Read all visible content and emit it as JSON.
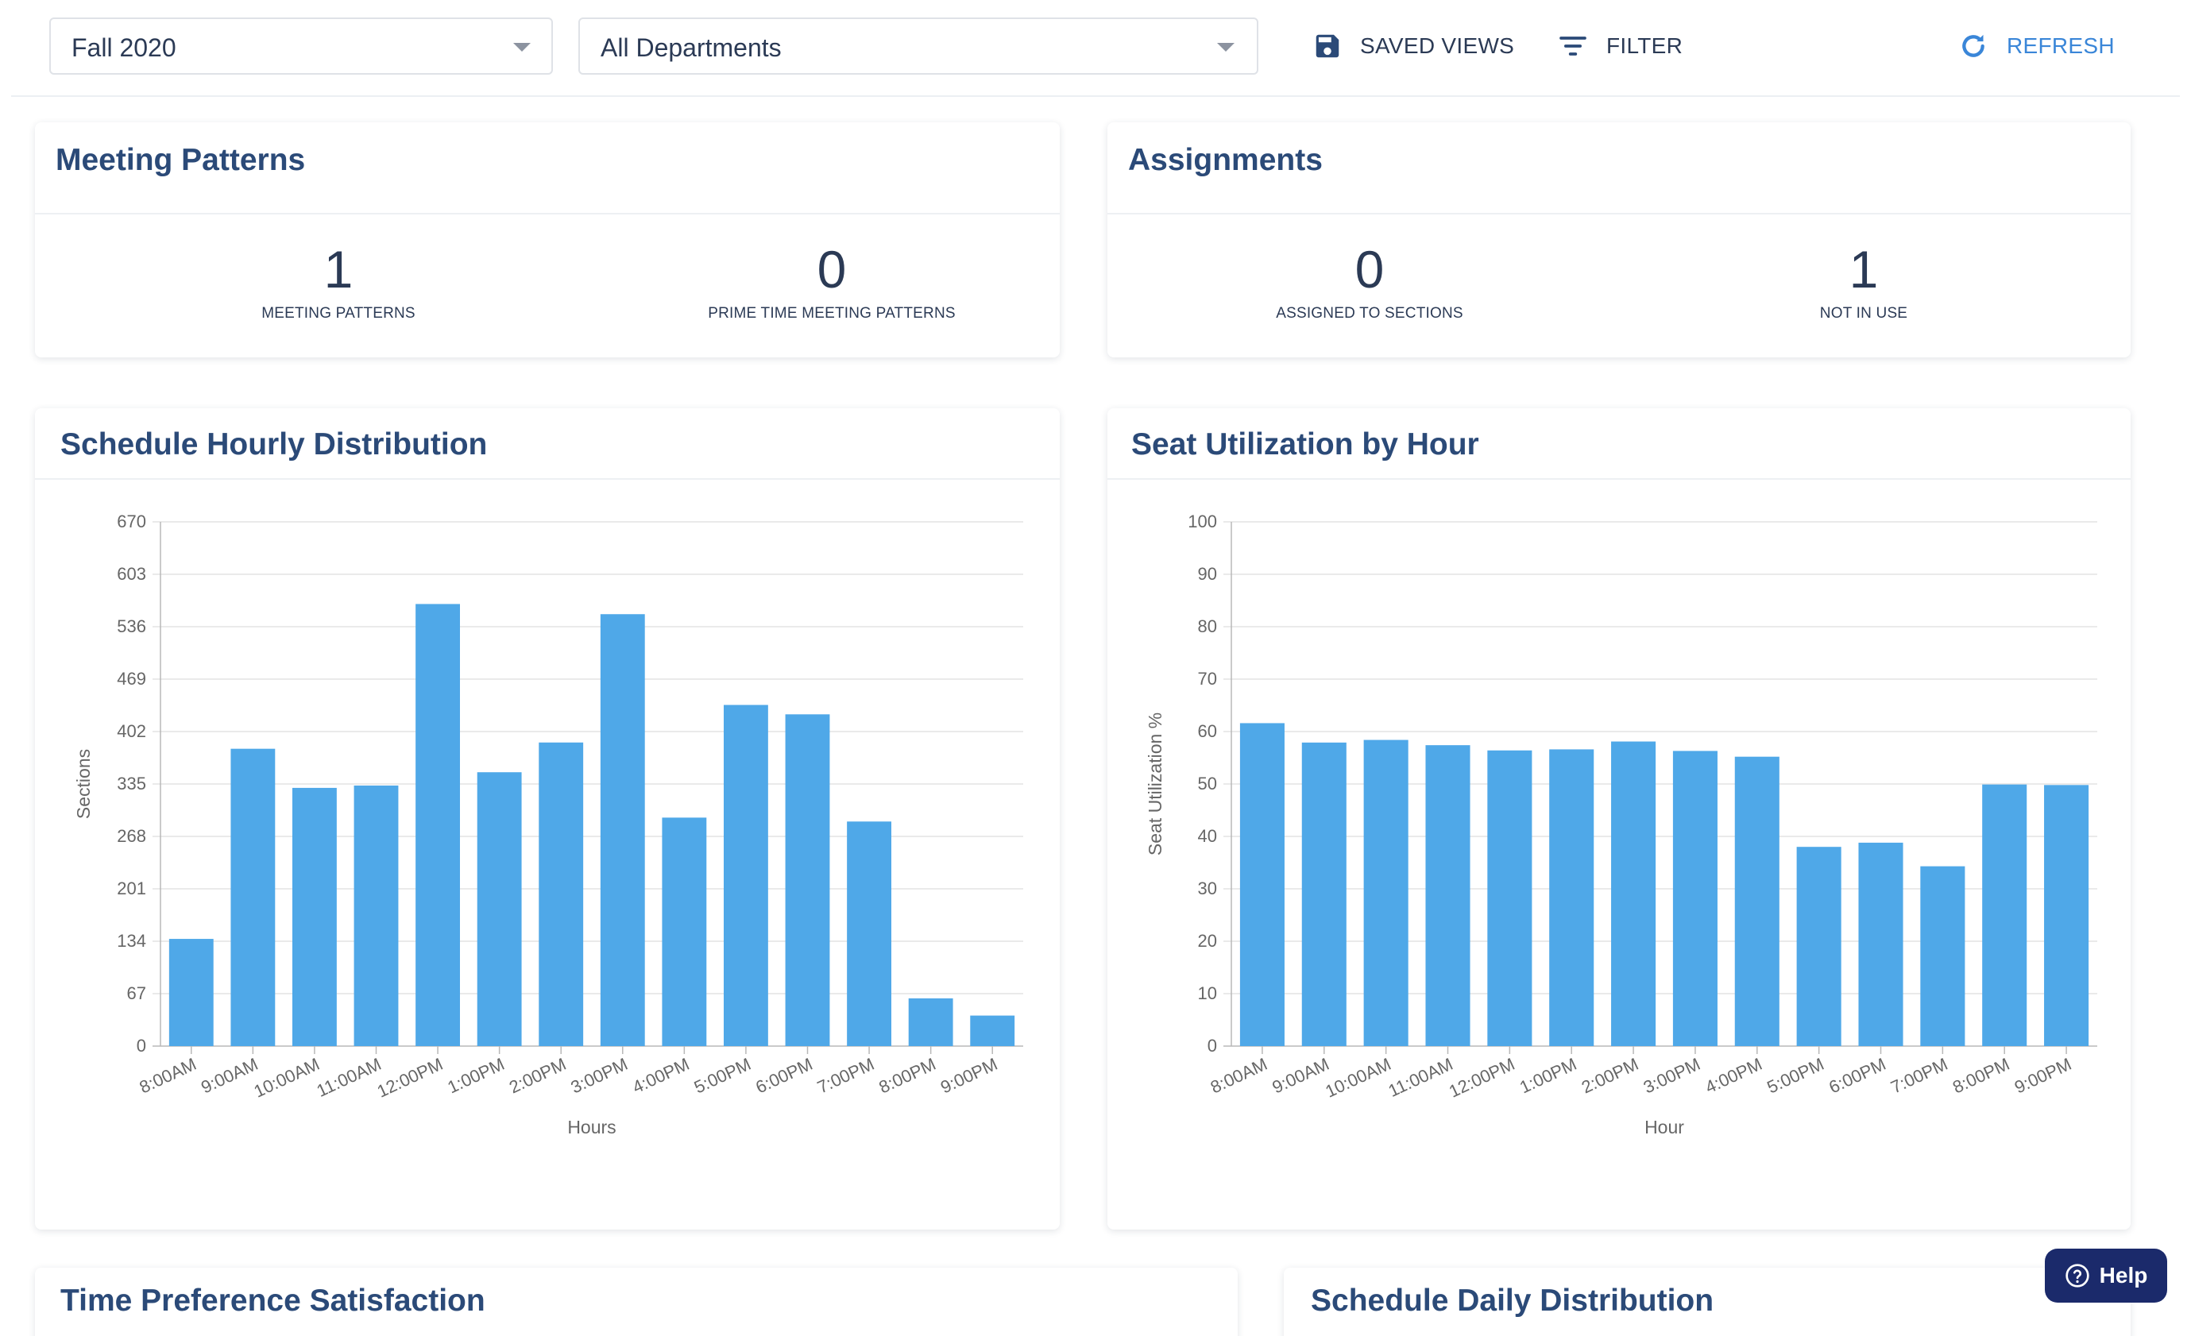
{
  "toolbar": {
    "term_select": {
      "value": "Fall 2020"
    },
    "department_select": {
      "value": "All Departments"
    },
    "saved_views_label": "SAVED VIEWS",
    "filter_label": "FILTER",
    "refresh_label": "REFRESH",
    "icons": {
      "saved_views": "save-icon",
      "filter": "filter-icon",
      "refresh": "refresh-icon",
      "dropdown": "chevron-down-icon"
    },
    "colors": {
      "refresh": "#3a86d8",
      "text": "#2b3a55"
    }
  },
  "meeting_patterns": {
    "title": "Meeting Patterns",
    "stats": [
      {
        "value": "1",
        "caption": "MEETING PATTERNS"
      },
      {
        "value": "0",
        "caption": "PRIME TIME MEETING PATTERNS"
      }
    ]
  },
  "assignments": {
    "title": "Assignments",
    "stats": [
      {
        "value": "0",
        "caption": "ASSIGNED TO SECTIONS"
      },
      {
        "value": "1",
        "caption": "NOT IN USE"
      }
    ]
  },
  "hourly_distribution": {
    "title": "Schedule Hourly Distribution"
  },
  "seat_utilization": {
    "title": "Seat Utilization by Hour"
  },
  "time_preference": {
    "title": "Time Preference Satisfaction"
  },
  "daily_distribution": {
    "title": "Schedule Daily Distribution"
  },
  "help": {
    "label": "Help",
    "icon": "help-circle-icon",
    "color": "#1b2a6b"
  },
  "chart_data": [
    {
      "type": "bar",
      "title": "Schedule Hourly Distribution",
      "xlabel": "Hours",
      "ylabel": "Sections",
      "ylim": [
        0,
        670
      ],
      "yticks": [
        0,
        67,
        134,
        201,
        268,
        335,
        402,
        469,
        536,
        603,
        670
      ],
      "grid": true,
      "color": "#4fa8e8",
      "categories": [
        "8:00AM",
        "9:00AM",
        "10:00AM",
        "11:00AM",
        "12:00PM",
        "1:00PM",
        "2:00PM",
        "3:00PM",
        "4:00PM",
        "5:00PM",
        "6:00PM",
        "7:00PM",
        "8:00PM",
        "9:00PM"
      ],
      "values": [
        137,
        380,
        330,
        333,
        565,
        350,
        388,
        552,
        292,
        436,
        424,
        287,
        61,
        39
      ]
    },
    {
      "type": "bar",
      "title": "Seat Utilization by Hour",
      "xlabel": "Hour",
      "ylabel": "Seat Utilization %",
      "ylim": [
        0,
        100
      ],
      "yticks": [
        0,
        10,
        20,
        30,
        40,
        50,
        60,
        70,
        80,
        90,
        100
      ],
      "grid": true,
      "color": "#4fa8e8",
      "categories": [
        "8:00AM",
        "9:00AM",
        "10:00AM",
        "11:00AM",
        "12:00PM",
        "1:00PM",
        "2:00PM",
        "3:00PM",
        "4:00PM",
        "5:00PM",
        "6:00PM",
        "7:00PM",
        "8:00PM",
        "9:00PM"
      ],
      "values": [
        61.6,
        57.9,
        58.4,
        57.4,
        56.4,
        56.6,
        58.1,
        56.3,
        55.2,
        38.0,
        38.8,
        34.3,
        49.9,
        49.8
      ]
    }
  ]
}
